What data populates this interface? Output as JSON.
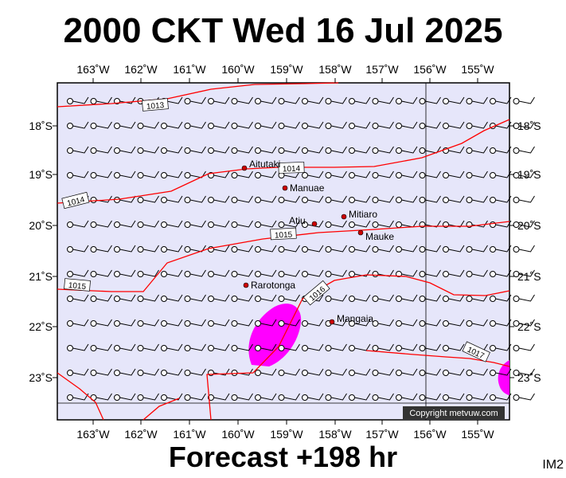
{
  "header": {
    "title": "2000 CKT Wed 16 Jul 2025"
  },
  "footer": {
    "forecast": "Forecast +198 hr",
    "code": "IM2"
  },
  "map": {
    "background_color": "#e6e6fa",
    "isobar_color": "#ff0000",
    "rain_color": "#ff00ff",
    "lon_labels": [
      "163˚W",
      "162˚W",
      "161˚W",
      "160˚W",
      "159˚W",
      "158˚W",
      "157˚W",
      "156˚W",
      "155˚W"
    ],
    "lat_labels": [
      "18˚S",
      "19˚S",
      "20˚S",
      "21˚S",
      "22˚S",
      "23˚S"
    ],
    "isobars": [
      {
        "label": "1013"
      },
      {
        "label": "1014"
      },
      {
        "label": "1014"
      },
      {
        "label": "1015"
      },
      {
        "label": "1015"
      },
      {
        "label": "1016"
      },
      {
        "label": "1017"
      }
    ],
    "islands": [
      {
        "name": "Aitutaki"
      },
      {
        "name": "Manuae"
      },
      {
        "name": "Mitiaro"
      },
      {
        "name": "Atiu"
      },
      {
        "name": "Mauke"
      },
      {
        "name": "Rarotonga"
      },
      {
        "name": "Mangaia"
      }
    ],
    "copyright": "Copyright metvuw.com"
  }
}
